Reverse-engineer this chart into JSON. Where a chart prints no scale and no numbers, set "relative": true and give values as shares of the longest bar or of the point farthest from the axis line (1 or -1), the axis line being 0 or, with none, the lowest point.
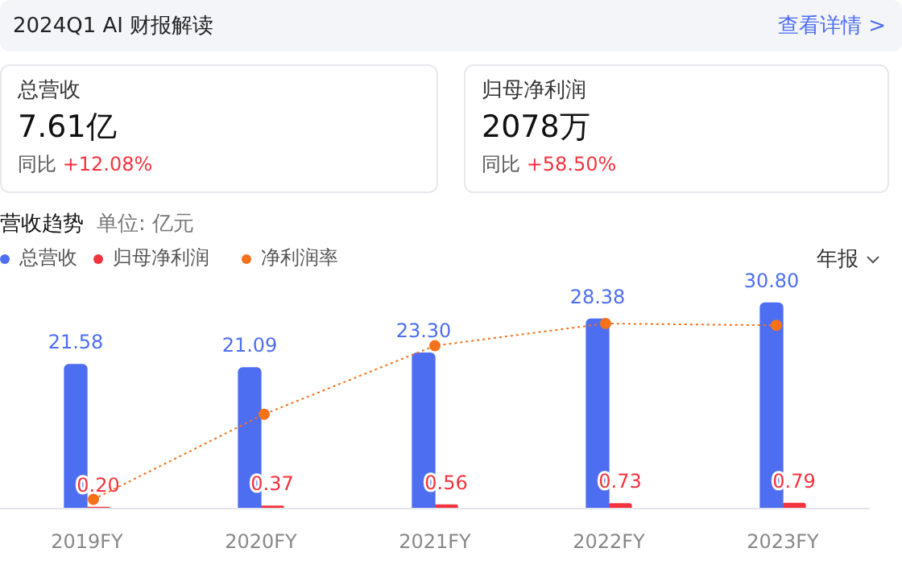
{
  "chart_data": [
    {
      "type": "other",
      "title": "2024Q1 AI 财报解读",
      "annotations": [
        "查看详情 >",
        "总营收",
        "7.61亿",
        "同比",
        "+12.08%",
        "归母净利润",
        "2078万",
        "同比",
        "+58.50%"
      ]
    },
    {
      "type": "bar",
      "title": "营收趋势",
      "subtitle": "单位: 亿元",
      "annotations": [
        "年报"
      ],
      "categories": [
        "2019FY",
        "2020FY",
        "2021FY",
        "2022FY",
        "2023FY"
      ],
      "series": [
        {
          "name": "总营收",
          "color": "#4e6ef2",
          "values": [
            21.58,
            21.09,
            23.3,
            28.38,
            30.8
          ],
          "value_labels": [
            "21.58",
            "21.09",
            "23.30",
            "28.38",
            "30.80"
          ]
        },
        {
          "name": "归母净利润",
          "color": "#f5333f",
          "values": [
            0.2,
            0.37,
            0.56,
            0.73,
            0.79
          ],
          "value_labels": [
            "0.20",
            "0.37",
            "0.56",
            "0.73",
            "0.79"
          ]
        }
      ],
      "tick_labels": "x",
      "grid": false,
      "legend": "top left"
    },
    {
      "type": "line",
      "relative": true,
      "categories": [
        null,
        null,
        null,
        null,
        null
      ],
      "series": [
        {
          "name": "净利润率",
          "color": "#f5711a",
          "values": [
            0.05,
            0.51,
            0.88,
            1,
            0.99
          ],
          "marker": "circle",
          "line_style": "dotted"
        }
      ],
      "tick_labels": false,
      "grid": false,
      "legend": "top left"
    }
  ]
}
